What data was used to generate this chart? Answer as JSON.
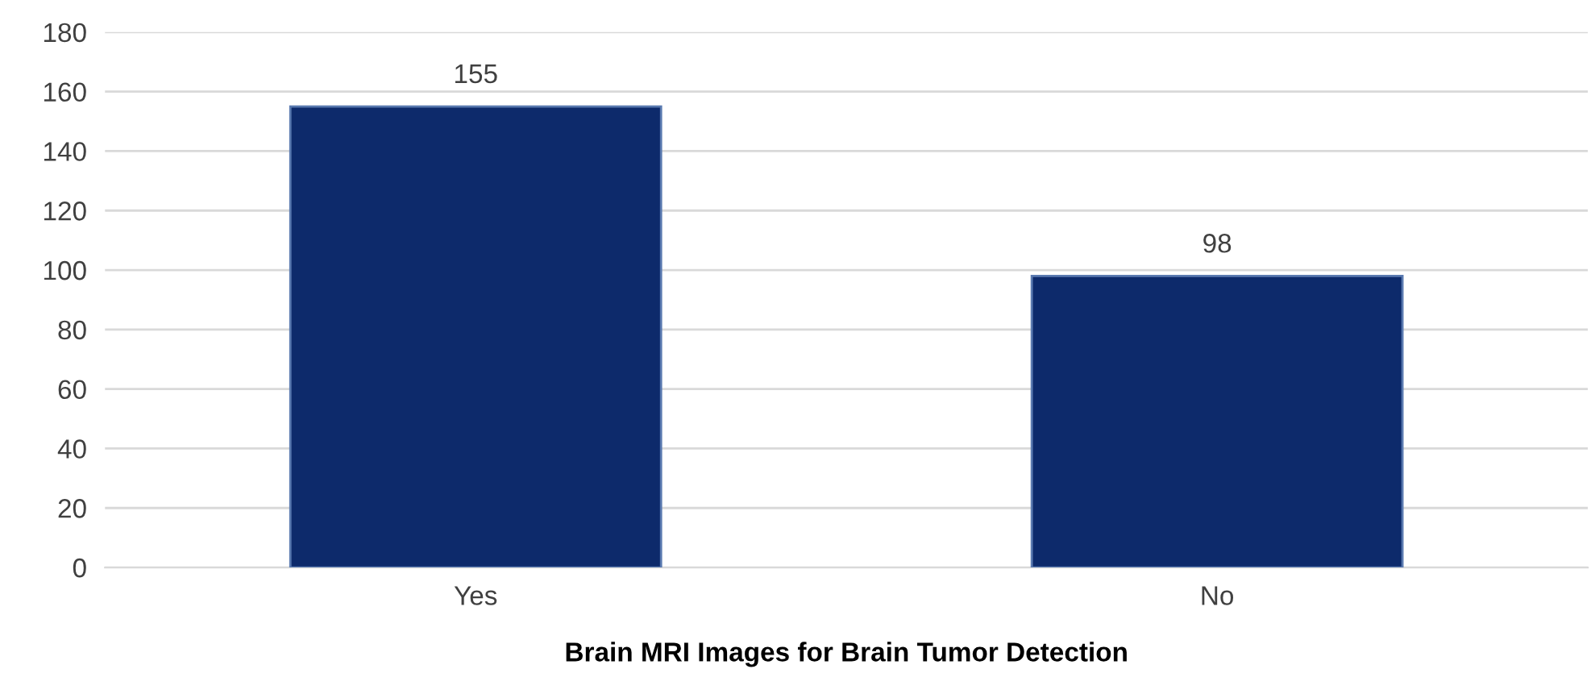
{
  "chart_data": {
    "type": "bar",
    "xlabel": "Brain MRI Images for Brain Tumor Detection",
    "categories": [
      "Yes",
      "No"
    ],
    "values": [
      155,
      98
    ],
    "color": "#0d2a6b",
    "ylim": [
      0,
      180
    ],
    "yticks": [
      0,
      20,
      40,
      60,
      80,
      100,
      120,
      140,
      160,
      180
    ],
    "grid": "y",
    "data_labels": true,
    "legend": false
  }
}
